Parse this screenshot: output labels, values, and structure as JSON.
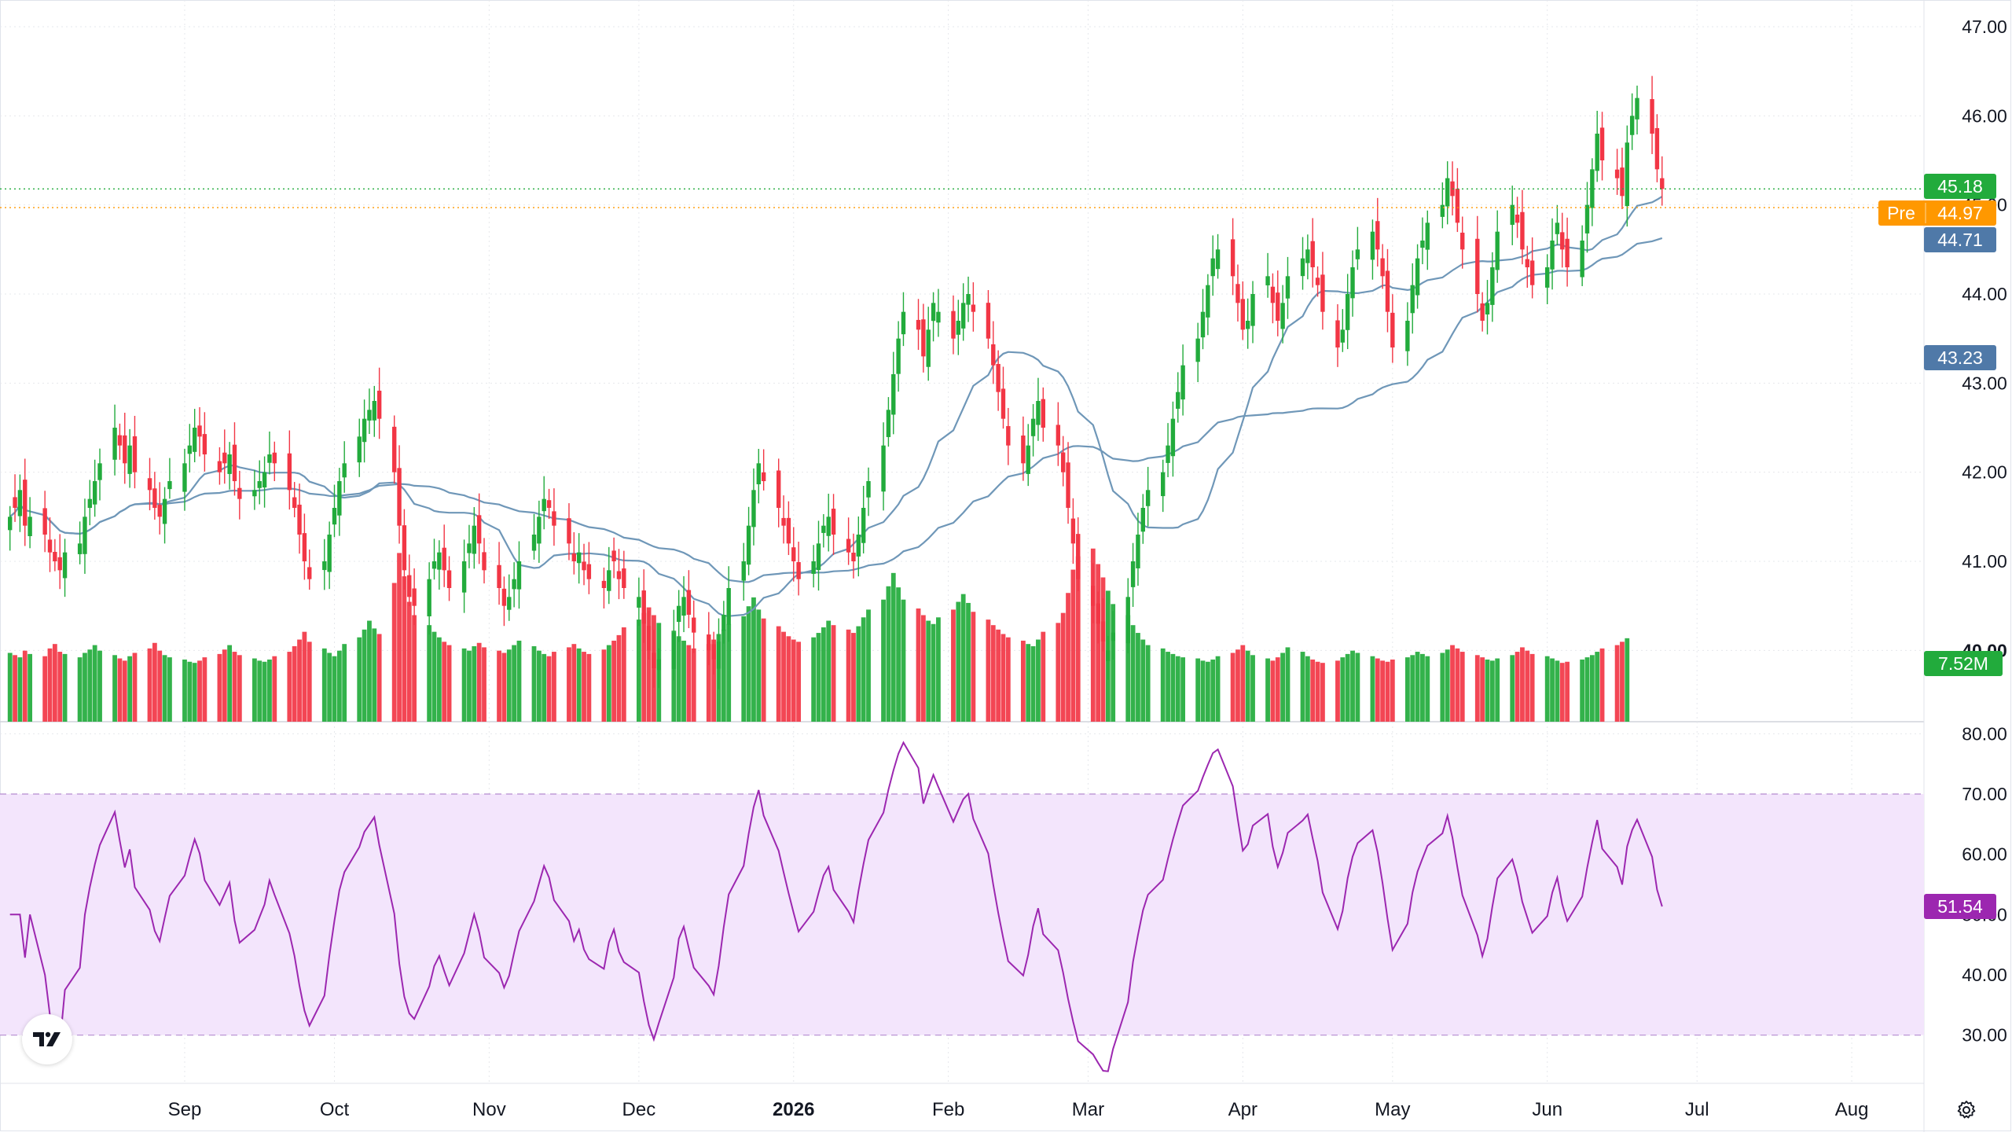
{
  "colors": {
    "up": "#22ab3c",
    "down": "#f23645",
    "ma_fast": "#6f97b8",
    "ma_slow": "#6f97b8",
    "rsi_line": "#9c27b0",
    "rsi_band": "#f3e5fc",
    "grid": "#e6e8ec",
    "axis_text": "#131722",
    "last_price_tag": "#22ab3c",
    "pre_tag": "#ff9800",
    "ma_tag": "#4f79a8",
    "rsi_tag": "#9c27b0"
  },
  "chart_data": {
    "type": "candlestick",
    "price_axis": {
      "range": [
        39.2,
        47.3
      ],
      "ticks": [
        "47.00",
        "46.00",
        "45.00",
        "44.00",
        "43.00",
        "42.00",
        "41.00",
        "40.00"
      ]
    },
    "time_axis": {
      "range": [
        "2025-07-26",
        "2026-08-15"
      ],
      "labels": [
        {
          "date": "2025-09-01",
          "text": "Sep",
          "bold": false
        },
        {
          "date": "2025-10-01",
          "text": "Oct",
          "bold": false
        },
        {
          "date": "2025-11-01",
          "text": "Nov",
          "bold": false
        },
        {
          "date": "2025-12-01",
          "text": "Dec",
          "bold": false
        },
        {
          "date": "2026-01-01",
          "text": "2026",
          "bold": true
        },
        {
          "date": "2026-02-01",
          "text": "Feb",
          "bold": false
        },
        {
          "date": "2026-03-01",
          "text": "Mar",
          "bold": false
        },
        {
          "date": "2026-04-01",
          "text": "Apr",
          "bold": false
        },
        {
          "date": "2026-05-01",
          "text": "May",
          "bold": false
        },
        {
          "date": "2026-06-01",
          "text": "Jun",
          "bold": false
        },
        {
          "date": "2026-07-01",
          "text": "Jul",
          "bold": false
        },
        {
          "date": "2026-08-01",
          "text": "Aug",
          "bold": false
        }
      ]
    },
    "first_date": "2025-07-28",
    "last_date": "2026-07-31",
    "closes": [
      41.5,
      41.6,
      41.8,
      41.4,
      41.5,
      41.3,
      41.1,
      41.0,
      40.9,
      41.1,
      41.2,
      41.5,
      41.7,
      41.9,
      42.1,
      42.5,
      42.3,
      42.1,
      42.3,
      42.0,
      41.8,
      41.6,
      41.5,
      41.7,
      41.9,
      42.1,
      42.3,
      42.5,
      42.4,
      42.2,
      42.0,
      42.1,
      42.2,
      41.9,
      41.7,
      41.8,
      41.9,
      42.0,
      42.2,
      42.1,
      41.8,
      41.6,
      41.3,
      41.0,
      40.8,
      41.0,
      41.3,
      41.6,
      41.9,
      42.1,
      42.4,
      42.6,
      42.7,
      42.8,
      42.6,
      42.0,
      41.4,
      40.9,
      40.6,
      40.5,
      40.8,
      41.0,
      41.1,
      40.9,
      40.7,
      41.0,
      41.2,
      41.4,
      41.2,
      40.9,
      40.7,
      40.5,
      40.6,
      40.8,
      41.0,
      41.3,
      41.5,
      41.7,
      41.6,
      41.4,
      41.2,
      41.0,
      41.1,
      40.9,
      40.8,
      40.7,
      40.9,
      41.0,
      40.8,
      40.7,
      40.6,
      40.3,
      40.0,
      39.8,
      39.9,
      40.2,
      40.5,
      40.6,
      40.4,
      40.2,
      40.0,
      39.9,
      40.1,
      40.4,
      40.7,
      41.0,
      41.4,
      41.8,
      42.1,
      41.9,
      41.6,
      41.4,
      41.2,
      41.0,
      40.8,
      41.0,
      41.2,
      41.4,
      41.5,
      41.3,
      41.1,
      41.0,
      41.3,
      41.6,
      41.9,
      42.3,
      42.7,
      43.1,
      43.5,
      43.8,
      43.6,
      43.3,
      43.6,
      43.9,
      43.8,
      43.5,
      43.7,
      43.9,
      44.0,
      43.8,
      43.5,
      43.2,
      42.9,
      42.6,
      42.3,
      42.1,
      42.3,
      42.6,
      42.8,
      42.5,
      42.3,
      42.0,
      41.6,
      41.2,
      40.8,
      40.5,
      40.3,
      40.1,
      40.0,
      40.2,
      40.6,
      41.0,
      41.3,
      41.6,
      41.8,
      42.0,
      42.3,
      42.6,
      42.9,
      43.2,
      43.5,
      43.8,
      44.1,
      44.4,
      44.5,
      44.2,
      43.9,
      43.6,
      43.7,
      44.0,
      44.2,
      43.9,
      43.7,
      43.9,
      44.2,
      44.4,
      44.5,
      44.3,
      44.1,
      43.8,
      43.4,
      43.6,
      44.0,
      44.3,
      44.5,
      44.7,
      44.5,
      44.2,
      43.8,
      43.4,
      43.7,
      44.1,
      44.4,
      44.6,
      44.8,
      45.0,
      45.3,
      45.1,
      44.8,
      44.5,
      44.0,
      43.7,
      43.9,
      44.3,
      44.7,
      45.0,
      44.8,
      44.5,
      44.3,
      44.1,
      44.3,
      44.6,
      44.8,
      44.5,
      44.3,
      44.6,
      45.0,
      45.4,
      45.8,
      45.5,
      45.3,
      45.1,
      45.7,
      46.0,
      46.2,
      45.8,
      45.4,
      45.18
    ],
    "volume_axis": {
      "max_millions": 17.0
    },
    "volumes_millions": [
      6.2,
      6.0,
      5.8,
      6.4,
      6.1,
      5.9,
      6.6,
      7.0,
      6.3,
      6.1,
      5.8,
      6.2,
      6.5,
      6.9,
      6.4,
      6.0,
      5.7,
      5.5,
      5.9,
      6.2,
      6.6,
      7.1,
      6.4,
      6.0,
      5.8,
      5.6,
      5.4,
      5.3,
      5.5,
      5.8,
      6.1,
      6.5,
      6.9,
      6.3,
      6.0,
      5.7,
      5.5,
      5.4,
      5.6,
      5.9,
      6.3,
      6.8,
      7.4,
      8.1,
      7.2,
      6.6,
      6.2,
      5.9,
      6.4,
      7.0,
      7.6,
      8.3,
      9.1,
      8.4,
      7.9,
      12.5,
      15.2,
      13.1,
      10.8,
      9.6,
      8.7,
      8.1,
      7.6,
      7.2,
      6.9,
      6.6,
      6.4,
      6.8,
      7.1,
      6.7,
      6.4,
      6.2,
      6.5,
      6.9,
      7.3,
      6.8,
      6.4,
      6.1,
      5.9,
      6.3,
      6.7,
      7.0,
      6.6,
      6.3,
      6.1,
      6.5,
      6.9,
      7.3,
      7.8,
      8.5,
      9.2,
      9.8,
      10.3,
      9.6,
      8.9,
      8.2,
      7.7,
      7.3,
      6.9,
      6.6,
      7.0,
      7.4,
      7.9,
      8.3,
      8.8,
      9.5,
      10.4,
      11.2,
      10.1,
      9.3,
      8.6,
      8.1,
      7.7,
      7.4,
      7.2,
      7.6,
      8.0,
      8.5,
      9.1,
      8.7,
      8.3,
      8.0,
      8.6,
      9.4,
      10.1,
      11.0,
      12.2,
      13.4,
      12.1,
      11.0,
      10.2,
      9.6,
      9.1,
      8.8,
      9.4,
      10.1,
      10.8,
      11.5,
      10.7,
      9.9,
      9.2,
      8.7,
      8.3,
      7.9,
      7.6,
      7.3,
      7.0,
      6.8,
      7.4,
      8.1,
      8.9,
      9.8,
      11.6,
      13.7,
      14.9,
      15.6,
      14.2,
      13.0,
      11.8,
      10.6,
      9.6,
      8.7,
      8.0,
      7.4,
      6.9,
      6.6,
      6.3,
      6.1,
      5.9,
      5.8,
      5.7,
      5.5,
      5.4,
      5.6,
      5.9,
      6.2,
      6.5,
      6.9,
      6.4,
      6.0,
      5.7,
      5.5,
      5.8,
      6.2,
      6.7,
      6.3,
      5.9,
      5.6,
      5.4,
      5.3,
      5.5,
      5.8,
      6.1,
      6.4,
      6.2,
      5.9,
      5.7,
      5.5,
      5.4,
      5.6,
      5.8,
      6.0,
      6.3,
      6.1,
      5.9,
      6.2,
      6.5,
      6.9,
      6.6,
      6.3,
      6.0,
      5.8,
      5.6,
      5.5,
      5.7,
      6.0,
      6.3,
      6.7,
      6.4,
      6.1,
      5.9,
      5.7,
      5.5,
      5.3,
      5.4,
      5.6,
      5.8,
      6.0,
      6.3,
      6.6,
      6.9,
      7.2,
      7.52
    ],
    "ma_fast_period": 20,
    "ma_slow_period": 50,
    "rsi_axis": {
      "range": [
        22,
        82
      ],
      "ticks": [
        "80.00",
        "70.00",
        "60.00",
        "50.00",
        "40.00",
        "30.00"
      ],
      "overbought": 70,
      "oversold": 30
    },
    "rsi_period": 14
  },
  "price_tags": {
    "last": "45.18",
    "pre_label": "Pre",
    "pre_value": "44.97",
    "ma_fast": "44.71",
    "ma_slow": "43.23",
    "volume": "7.52M",
    "rsi": "51.54"
  },
  "price_values": {
    "last": 45.18,
    "pre": 44.97
  },
  "icons": {
    "logo": "tradingview-logo-icon",
    "settings": "gear-icon"
  }
}
